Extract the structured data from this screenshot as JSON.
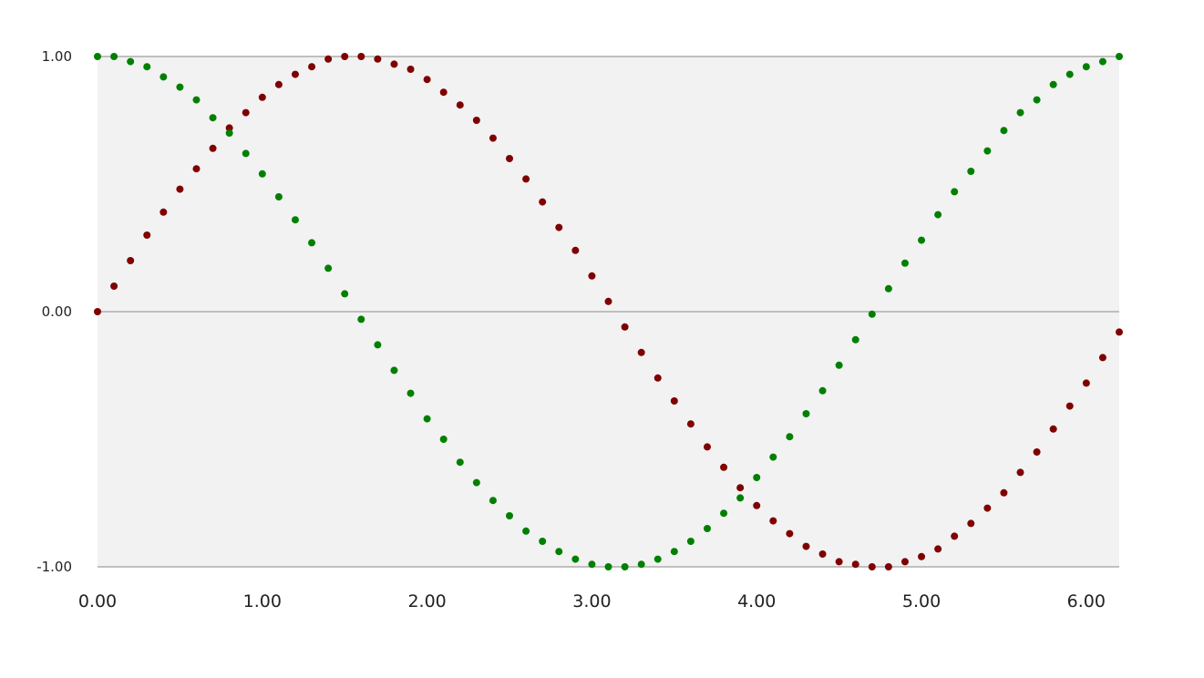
{
  "chart_data": {
    "type": "scatter",
    "title": "",
    "xlabel": "",
    "ylabel": "",
    "xlim": [
      0,
      6.2
    ],
    "ylim": [
      -1,
      1
    ],
    "grid": true,
    "legend": "none",
    "background_color": "#f2f2f2",
    "x_ticks": [
      "0.00",
      "1.00",
      "2.00",
      "3.00",
      "4.00",
      "5.00",
      "6.00"
    ],
    "y_ticks": [
      "-1.00",
      "0.00",
      "1.00"
    ],
    "x": [
      0.0,
      0.1,
      0.2,
      0.3,
      0.4,
      0.5,
      0.6,
      0.7,
      0.8,
      0.9,
      1.0,
      1.1,
      1.2,
      1.3,
      1.4,
      1.5,
      1.6,
      1.7,
      1.8,
      1.9,
      2.0,
      2.1,
      2.2,
      2.3,
      2.4,
      2.5,
      2.6,
      2.7,
      2.8,
      2.9,
      3.0,
      3.1,
      3.2,
      3.3,
      3.4,
      3.5,
      3.6,
      3.7,
      3.8,
      3.9,
      4.0,
      4.1,
      4.2,
      4.3,
      4.4,
      4.5,
      4.6,
      4.7,
      4.8,
      4.9,
      5.0,
      5.1,
      5.2,
      5.3,
      5.4,
      5.5,
      5.6,
      5.7,
      5.8,
      5.9,
      6.0,
      6.1,
      6.2
    ],
    "series": [
      {
        "color": "#800000",
        "values": [
          0.0,
          0.1,
          0.2,
          0.3,
          0.39,
          0.48,
          0.56,
          0.64,
          0.72,
          0.78,
          0.84,
          0.89,
          0.93,
          0.96,
          0.99,
          1.0,
          1.0,
          0.99,
          0.97,
          0.95,
          0.91,
          0.86,
          0.81,
          0.75,
          0.68,
          0.6,
          0.52,
          0.43,
          0.33,
          0.24,
          0.14,
          0.04,
          -0.06,
          -0.16,
          -0.26,
          -0.35,
          -0.44,
          -0.53,
          -0.61,
          -0.69,
          -0.76,
          -0.82,
          -0.87,
          -0.92,
          -0.95,
          -0.98,
          -0.99,
          -1.0,
          -1.0,
          -0.98,
          -0.96,
          -0.93,
          -0.88,
          -0.83,
          -0.77,
          -0.71,
          -0.63,
          -0.55,
          -0.46,
          -0.37,
          -0.28,
          -0.18,
          -0.08
        ]
      },
      {
        "color": "#008000",
        "values": [
          1.0,
          1.0,
          0.98,
          0.96,
          0.92,
          0.88,
          0.83,
          0.76,
          0.7,
          0.62,
          0.54,
          0.45,
          0.36,
          0.27,
          0.17,
          0.07,
          -0.03,
          -0.13,
          -0.23,
          -0.32,
          -0.42,
          -0.5,
          -0.59,
          -0.67,
          -0.74,
          -0.8,
          -0.86,
          -0.9,
          -0.94,
          -0.97,
          -0.99,
          -1.0,
          -1.0,
          -0.99,
          -0.97,
          -0.94,
          -0.9,
          -0.85,
          -0.79,
          -0.73,
          -0.65,
          -0.57,
          -0.49,
          -0.4,
          -0.31,
          -0.21,
          -0.11,
          -0.01,
          0.09,
          0.19,
          0.28,
          0.38,
          0.47,
          0.55,
          0.63,
          0.71,
          0.78,
          0.83,
          0.89,
          0.93,
          0.96,
          0.98,
          1.0
        ]
      }
    ]
  }
}
